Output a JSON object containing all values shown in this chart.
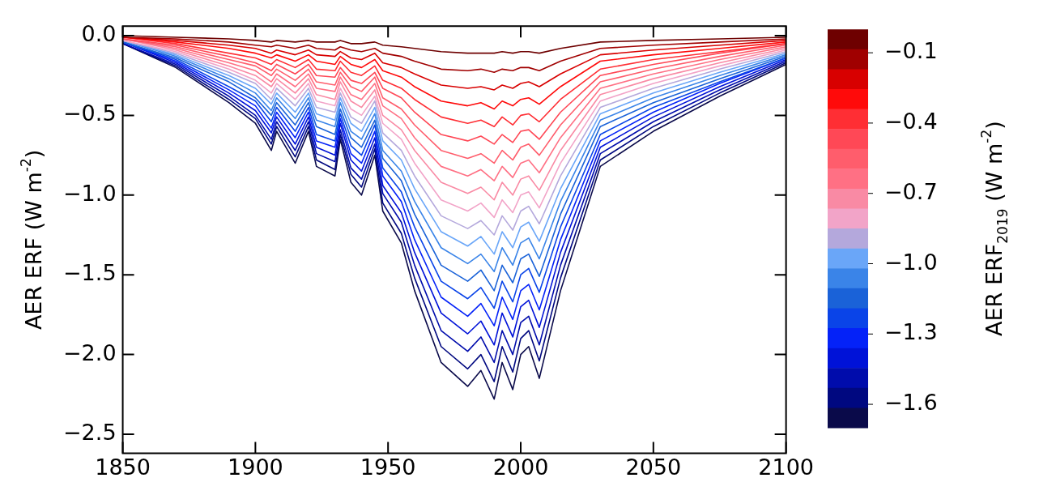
{
  "chart_data": {
    "type": "line",
    "xlabel": null,
    "ylabel": "AER ERF (W m$^{-2}$)",
    "clabel": "AER ERF$_{2019}$ (W m$^{-2}$)",
    "clim": [
      -1.7,
      0
    ],
    "cticks": [
      {
        "value": -0.1,
        "label": "−0.1"
      },
      {
        "value": -0.4,
        "label": "−0.4"
      },
      {
        "value": -0.7,
        "label": "−0.7"
      },
      {
        "value": -1.0,
        "label": "−1.0"
      },
      {
        "value": -1.3,
        "label": "−1.3"
      },
      {
        "value": -1.6,
        "label": "−1.6"
      }
    ],
    "xlim": [
      1850,
      2100
    ],
    "xticks": [
      1850,
      1900,
      1950,
      2000,
      2050,
      2100
    ],
    "ylim": [
      -2.62,
      0.06
    ],
    "yticks": [
      {
        "value": -2.5,
        "label": "−2.5"
      },
      {
        "value": -2.0,
        "label": "−2.0"
      },
      {
        "value": -1.5,
        "label": "−1.5"
      },
      {
        "value": -1.0,
        "label": "−1.0"
      },
      {
        "value": -0.5,
        "label": "−0.5"
      },
      {
        "value": 0.0,
        "label": "0.0"
      }
    ],
    "grid": false,
    "legend": false,
    "marker": "none",
    "line_style": "solid",
    "x": [
      1850,
      1870,
      1890,
      1900,
      1906,
      1908,
      1915,
      1920,
      1923,
      1930,
      1932,
      1936,
      1940,
      1945,
      1948,
      1955,
      1960,
      1970,
      1980,
      1985,
      1990,
      1993,
      1997,
      2000,
      2003,
      2007,
      2015,
      2030,
      2050,
      2075,
      2100
    ],
    "series": [
      {
        "color": "#6e0000",
        "values": [
          0,
          -0.01,
          -0.02,
          -0.03,
          -0.04,
          -0.03,
          -0.04,
          -0.03,
          -0.04,
          -0.04,
          -0.03,
          -0.05,
          -0.05,
          -0.04,
          -0.06,
          -0.07,
          -0.08,
          -0.1,
          -0.11,
          -0.11,
          -0.11,
          -0.1,
          -0.11,
          -0.1,
          -0.1,
          -0.11,
          -0.08,
          -0.04,
          -0.03,
          -0.02,
          -0.01
        ]
      },
      {
        "color": "#a00000",
        "values": [
          -0.01,
          -0.02,
          -0.04,
          -0.06,
          -0.07,
          -0.06,
          -0.08,
          -0.06,
          -0.08,
          -0.09,
          -0.07,
          -0.09,
          -0.1,
          -0.08,
          -0.11,
          -0.13,
          -0.16,
          -0.21,
          -0.22,
          -0.21,
          -0.23,
          -0.21,
          -0.22,
          -0.2,
          -0.2,
          -0.22,
          -0.16,
          -0.08,
          -0.06,
          -0.04,
          -0.02
        ]
      },
      {
        "color": "#d80000",
        "values": [
          -0.01,
          -0.03,
          -0.06,
          -0.08,
          -0.11,
          -0.09,
          -0.12,
          -0.09,
          -0.12,
          -0.13,
          -0.1,
          -0.14,
          -0.15,
          -0.11,
          -0.17,
          -0.2,
          -0.24,
          -0.31,
          -0.33,
          -0.32,
          -0.34,
          -0.31,
          -0.33,
          -0.3,
          -0.29,
          -0.32,
          -0.24,
          -0.12,
          -0.09,
          -0.06,
          -0.03
        ]
      },
      {
        "color": "#ff0a0a",
        "values": [
          -0.01,
          -0.04,
          -0.08,
          -0.11,
          -0.14,
          -0.12,
          -0.16,
          -0.12,
          -0.16,
          -0.18,
          -0.13,
          -0.18,
          -0.2,
          -0.15,
          -0.22,
          -0.26,
          -0.32,
          -0.41,
          -0.44,
          -0.42,
          -0.46,
          -0.41,
          -0.44,
          -0.4,
          -0.39,
          -0.43,
          -0.32,
          -0.16,
          -0.12,
          -0.08,
          -0.04
        ]
      },
      {
        "color": "#ff2e34",
        "values": [
          -0.01,
          -0.05,
          -0.11,
          -0.14,
          -0.18,
          -0.15,
          -0.2,
          -0.15,
          -0.21,
          -0.22,
          -0.16,
          -0.23,
          -0.25,
          -0.19,
          -0.28,
          -0.33,
          -0.4,
          -0.51,
          -0.55,
          -0.53,
          -0.57,
          -0.51,
          -0.56,
          -0.5,
          -0.49,
          -0.54,
          -0.4,
          -0.21,
          -0.15,
          -0.1,
          -0.05
        ]
      },
      {
        "color": "#ff4856",
        "values": [
          -0.02,
          -0.06,
          -0.13,
          -0.17,
          -0.22,
          -0.18,
          -0.24,
          -0.18,
          -0.25,
          -0.26,
          -0.2,
          -0.28,
          -0.3,
          -0.23,
          -0.33,
          -0.39,
          -0.48,
          -0.62,
          -0.66,
          -0.63,
          -0.68,
          -0.62,
          -0.67,
          -0.6,
          -0.59,
          -0.65,
          -0.48,
          -0.25,
          -0.18,
          -0.11,
          -0.05
        ]
      },
      {
        "color": "#ff5d6c",
        "values": [
          -0.02,
          -0.07,
          -0.15,
          -0.19,
          -0.25,
          -0.21,
          -0.28,
          -0.21,
          -0.29,
          -0.31,
          -0.23,
          -0.32,
          -0.35,
          -0.26,
          -0.39,
          -0.46,
          -0.56,
          -0.72,
          -0.77,
          -0.74,
          -0.8,
          -0.72,
          -0.78,
          -0.7,
          -0.68,
          -0.75,
          -0.56,
          -0.29,
          -0.21,
          -0.13,
          -0.06
        ]
      },
      {
        "color": "#ff7084",
        "values": [
          -0.02,
          -0.08,
          -0.17,
          -0.22,
          -0.29,
          -0.24,
          -0.32,
          -0.24,
          -0.33,
          -0.35,
          -0.26,
          -0.37,
          -0.4,
          -0.3,
          -0.44,
          -0.52,
          -0.64,
          -0.82,
          -0.88,
          -0.84,
          -0.91,
          -0.82,
          -0.89,
          -0.8,
          -0.78,
          -0.86,
          -0.64,
          -0.33,
          -0.24,
          -0.15,
          -0.07
        ]
      },
      {
        "color": "#f98aa4",
        "values": [
          -0.02,
          -0.09,
          -0.19,
          -0.25,
          -0.32,
          -0.27,
          -0.36,
          -0.27,
          -0.37,
          -0.4,
          -0.29,
          -0.41,
          -0.45,
          -0.34,
          -0.5,
          -0.59,
          -0.72,
          -0.92,
          -0.99,
          -0.95,
          -1.03,
          -0.92,
          -1.0,
          -0.9,
          -0.88,
          -0.97,
          -0.72,
          -0.37,
          -0.27,
          -0.17,
          -0.08
        ]
      },
      {
        "color": "#f2a4c8",
        "values": [
          -0.03,
          -0.1,
          -0.21,
          -0.28,
          -0.36,
          -0.3,
          -0.4,
          -0.3,
          -0.41,
          -0.44,
          -0.33,
          -0.46,
          -0.5,
          -0.38,
          -0.55,
          -0.65,
          -0.8,
          -1.03,
          -1.1,
          -1.05,
          -1.14,
          -1.03,
          -1.11,
          -1.0,
          -0.98,
          -1.08,
          -0.8,
          -0.41,
          -0.3,
          -0.19,
          -0.09
        ]
      },
      {
        "color": "#b4a8dc",
        "values": [
          -0.03,
          -0.11,
          -0.23,
          -0.3,
          -0.4,
          -0.33,
          -0.44,
          -0.33,
          -0.45,
          -0.48,
          -0.36,
          -0.51,
          -0.55,
          -0.41,
          -0.61,
          -0.72,
          -0.88,
          -1.13,
          -1.21,
          -1.16,
          -1.25,
          -1.13,
          -1.22,
          -1.1,
          -1.07,
          -1.18,
          -0.88,
          -0.45,
          -0.33,
          -0.21,
          -0.1
        ]
      },
      {
        "color": "#6aa6f8",
        "values": [
          -0.03,
          -0.12,
          -0.25,
          -0.33,
          -0.43,
          -0.36,
          -0.48,
          -0.36,
          -0.49,
          -0.53,
          -0.39,
          -0.55,
          -0.6,
          -0.45,
          -0.66,
          -0.78,
          -0.96,
          -1.23,
          -1.32,
          -1.26,
          -1.37,
          -1.23,
          -1.33,
          -1.2,
          -1.17,
          -1.29,
          -0.96,
          -0.49,
          -0.36,
          -0.23,
          -0.11
        ]
      },
      {
        "color": "#3a84e8",
        "values": [
          -0.03,
          -0.13,
          -0.27,
          -0.36,
          -0.47,
          -0.39,
          -0.52,
          -0.39,
          -0.53,
          -0.57,
          -0.42,
          -0.6,
          -0.65,
          -0.49,
          -0.72,
          -0.85,
          -1.04,
          -1.33,
          -1.43,
          -1.37,
          -1.48,
          -1.33,
          -1.44,
          -1.3,
          -1.27,
          -1.4,
          -1.04,
          -0.53,
          -0.39,
          -0.25,
          -0.12
        ]
      },
      {
        "color": "#1a62d8",
        "values": [
          -0.04,
          -0.14,
          -0.29,
          -0.39,
          -0.5,
          -0.42,
          -0.56,
          -0.42,
          -0.57,
          -0.62,
          -0.46,
          -0.64,
          -0.7,
          -0.53,
          -0.77,
          -0.91,
          -1.12,
          -1.44,
          -1.54,
          -1.47,
          -1.6,
          -1.44,
          -1.55,
          -1.4,
          -1.37,
          -1.51,
          -1.12,
          -0.57,
          -0.42,
          -0.27,
          -0.13
        ]
      },
      {
        "color": "#0a44e8",
        "values": [
          -0.04,
          -0.15,
          -0.32,
          -0.41,
          -0.54,
          -0.45,
          -0.6,
          -0.45,
          -0.62,
          -0.66,
          -0.49,
          -0.69,
          -0.75,
          -0.56,
          -0.83,
          -0.98,
          -1.2,
          -1.54,
          -1.65,
          -1.58,
          -1.71,
          -1.54,
          -1.67,
          -1.5,
          -1.46,
          -1.61,
          -1.2,
          -0.62,
          -0.45,
          -0.29,
          -0.14
        ]
      },
      {
        "color": "#0422f8",
        "values": [
          -0.04,
          -0.16,
          -0.34,
          -0.44,
          -0.58,
          -0.48,
          -0.64,
          -0.48,
          -0.66,
          -0.7,
          -0.52,
          -0.74,
          -0.8,
          -0.6,
          -0.88,
          -1.04,
          -1.28,
          -1.64,
          -1.76,
          -1.68,
          -1.82,
          -1.64,
          -1.78,
          -1.6,
          -1.56,
          -1.72,
          -1.28,
          -0.66,
          -0.48,
          -0.3,
          -0.14
        ]
      },
      {
        "color": "#0012d8",
        "values": [
          -0.04,
          -0.17,
          -0.36,
          -0.47,
          -0.61,
          -0.51,
          -0.68,
          -0.51,
          -0.7,
          -0.75,
          -0.55,
          -0.78,
          -0.85,
          -0.64,
          -0.94,
          -1.11,
          -1.36,
          -1.74,
          -1.87,
          -1.79,
          -1.94,
          -1.74,
          -1.89,
          -1.7,
          -1.66,
          -1.83,
          -1.36,
          -0.7,
          -0.51,
          -0.32,
          -0.15
        ]
      },
      {
        "color": "#000cac",
        "values": [
          -0.05,
          -0.18,
          -0.38,
          -0.5,
          -0.65,
          -0.54,
          -0.72,
          -0.54,
          -0.74,
          -0.79,
          -0.59,
          -0.83,
          -0.9,
          -0.68,
          -0.99,
          -1.17,
          -1.44,
          -1.85,
          -1.98,
          -1.89,
          -2.05,
          -1.85,
          -2.0,
          -1.8,
          -1.76,
          -1.94,
          -1.44,
          -0.74,
          -0.54,
          -0.34,
          -0.16
        ]
      },
      {
        "color": "#000880",
        "values": [
          -0.05,
          -0.19,
          -0.4,
          -0.52,
          -0.68,
          -0.57,
          -0.76,
          -0.57,
          -0.78,
          -0.84,
          -0.62,
          -0.87,
          -0.95,
          -0.71,
          -1.05,
          -1.24,
          -1.52,
          -1.95,
          -2.09,
          -2.0,
          -2.17,
          -1.95,
          -2.11,
          -1.9,
          -1.85,
          -2.04,
          -1.52,
          -0.78,
          -0.57,
          -0.36,
          -0.17
        ]
      },
      {
        "color": "#0a0a4a",
        "values": [
          -0.05,
          -0.2,
          -0.42,
          -0.55,
          -0.72,
          -0.6,
          -0.8,
          -0.6,
          -0.82,
          -0.88,
          -0.65,
          -0.92,
          -1.0,
          -0.75,
          -1.1,
          -1.3,
          -1.6,
          -2.05,
          -2.2,
          -2.1,
          -2.28,
          -2.05,
          -2.22,
          -2.0,
          -1.95,
          -2.15,
          -1.6,
          -0.82,
          -0.6,
          -0.38,
          -0.18
        ]
      }
    ]
  }
}
